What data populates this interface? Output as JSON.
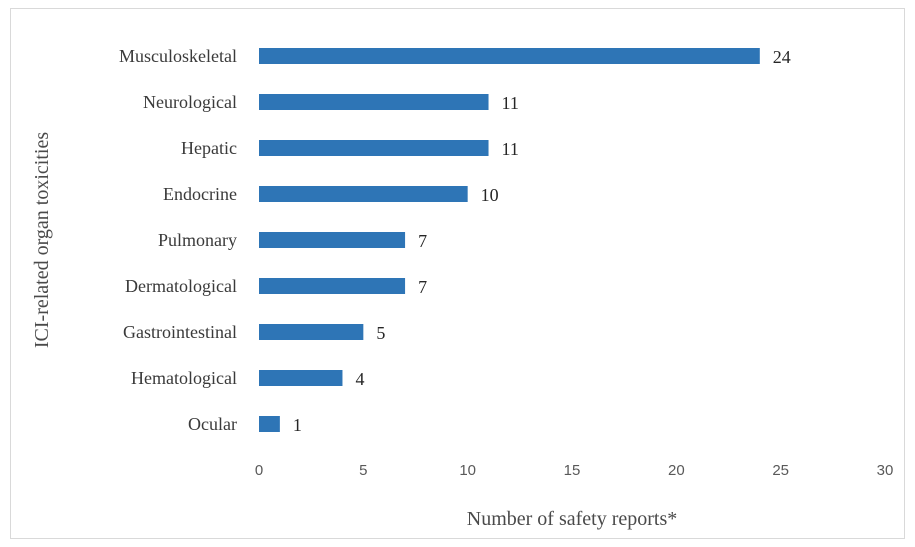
{
  "chart_data": {
    "type": "bar",
    "orientation": "horizontal",
    "categories": [
      "Musculoskeletal",
      "Neurological",
      "Hepatic",
      "Endocrine",
      "Pulmonary",
      "Dermatological",
      "Gastrointestinal",
      "Hematological",
      "Ocular"
    ],
    "values": [
      24,
      11,
      11,
      10,
      7,
      7,
      5,
      4,
      1
    ],
    "xlabel": "Number of safety reports*",
    "ylabel": "ICI-related organ toxicities",
    "xlim": [
      0,
      30
    ],
    "xticks": [
      0,
      5,
      10,
      15,
      20,
      25,
      30
    ],
    "grid": false,
    "legend": "none",
    "bar_color": "#2e75b6"
  }
}
